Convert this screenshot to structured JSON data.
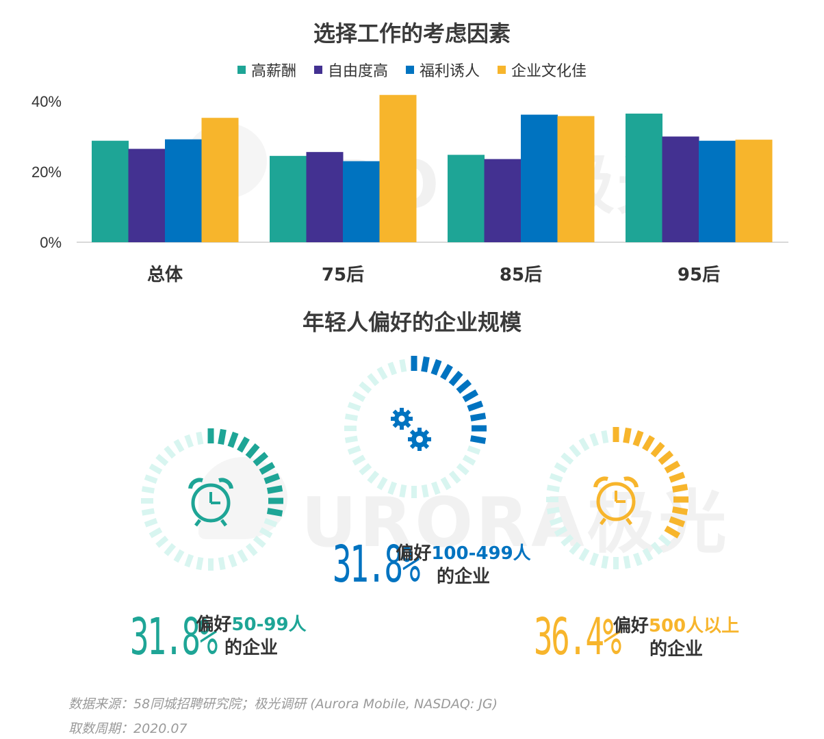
{
  "chart_data": [
    {
      "type": "bar",
      "title": "选择工作的考虑因素",
      "categories": [
        "总体",
        "75后",
        "85后",
        "95后"
      ],
      "series": [
        {
          "name": "高薪酬",
          "color": "#1ea596",
          "values": [
            28.8,
            24.5,
            24.8,
            36.5
          ]
        },
        {
          "name": "自由度高",
          "color": "#433191",
          "values": [
            26.5,
            25.6,
            23.6,
            30.0
          ]
        },
        {
          "name": "福利诱人",
          "color": "#0073c0",
          "values": [
            29.2,
            23.0,
            36.2,
            28.8
          ]
        },
        {
          "name": "企业文化佳",
          "color": "#f7b52c",
          "values": [
            35.3,
            41.8,
            35.8,
            29.1
          ]
        }
      ],
      "yticks": [
        "0%",
        "20%",
        "40%"
      ],
      "ylim": [
        0,
        40
      ],
      "legend": "top-center",
      "grid": false
    },
    {
      "type": "gauge",
      "title": "年轻人偏好的企业规模",
      "items": [
        {
          "value": 31.8,
          "percent_label": "31.8%",
          "prefix": "偏好",
          "highlight": "50-99人",
          "suffix": "的企业",
          "color": "#1ea596",
          "icon": "alarm-clock-icon"
        },
        {
          "value": 31.8,
          "percent_label": "31.8%",
          "prefix": "偏好",
          "highlight": "100-499人",
          "suffix": "的企业",
          "color": "#0073c0",
          "icon": "gears-icon"
        },
        {
          "value": 36.4,
          "percent_label": "36.4%",
          "prefix": "偏好",
          "highlight": "500人以上",
          "suffix": "的企业",
          "color": "#f7b52c",
          "icon": "alarm-clock-icon"
        }
      ]
    }
  ],
  "watermark": {
    "brand": "URORA",
    "cn": "极光"
  },
  "source": {
    "line1": "数据来源：58同城招聘研究院；极光调研 (Aurora Mobile, NASDAQ: JG)",
    "line2": "取数周期：2020.07"
  }
}
